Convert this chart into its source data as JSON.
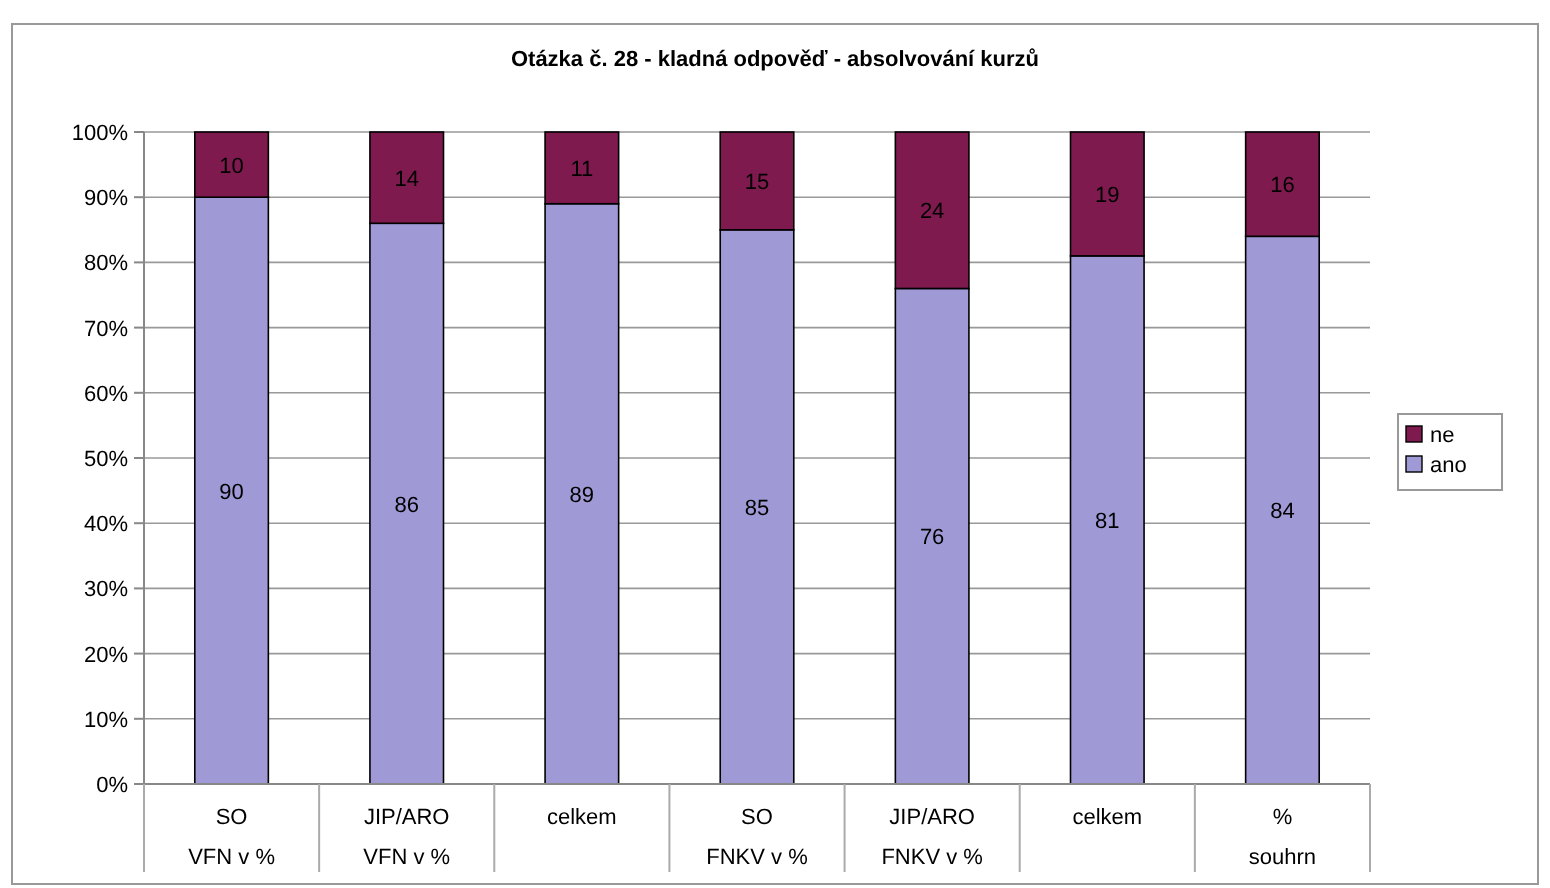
{
  "chart_data": {
    "type": "bar",
    "stacked": true,
    "title": "Otázka č. 28 - kladná odpověď - absolvování kurzů",
    "categories": [
      "SO\nVFN v %",
      "JIP/ARO\nVFN v %",
      "celkem",
      "SO\nFNKV v %",
      "JIP/ARO\nFNKV v %",
      "celkem",
      "%\nsouhrn"
    ],
    "series": [
      {
        "name": "ano",
        "color": "#9f9ad6",
        "values": [
          90,
          86,
          89,
          85,
          76,
          81,
          84
        ]
      },
      {
        "name": "ne",
        "color": "#7f1a4f",
        "values": [
          10,
          14,
          11,
          15,
          24,
          19,
          16
        ]
      }
    ],
    "ylim": [
      0,
      100
    ],
    "yticks": [
      {
        "value": 0,
        "label": "0%"
      },
      {
        "value": 10,
        "label": "10%"
      },
      {
        "value": 20,
        "label": "20%"
      },
      {
        "value": 30,
        "label": "30%"
      },
      {
        "value": 40,
        "label": "40%"
      },
      {
        "value": 50,
        "label": "50%"
      },
      {
        "value": 60,
        "label": "60%"
      },
      {
        "value": 70,
        "label": "70%"
      },
      {
        "value": 80,
        "label": "80%"
      },
      {
        "value": 90,
        "label": "90%"
      },
      {
        "value": 100,
        "label": "100%"
      }
    ],
    "grid": "y",
    "legend": "right",
    "data_labels": true
  }
}
